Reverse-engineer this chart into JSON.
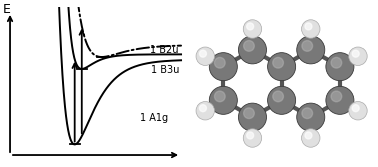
{
  "background_color": "#ffffff",
  "text_color": "#000000",
  "axis_label_E": "E",
  "label_1B2u": "1 B2u",
  "label_1B3u": "1 B3u",
  "label_1A1g": "1 A1g",
  "curve_color": "#000000",
  "label_fontsize": 7,
  "axis_label_fontsize": 9,
  "C_color": "#787878",
  "C_edge_color": "#3a3a3a",
  "H_color": "#e0e0e0",
  "H_edge_color": "#aaaaaa",
  "bond_color": "#555555"
}
